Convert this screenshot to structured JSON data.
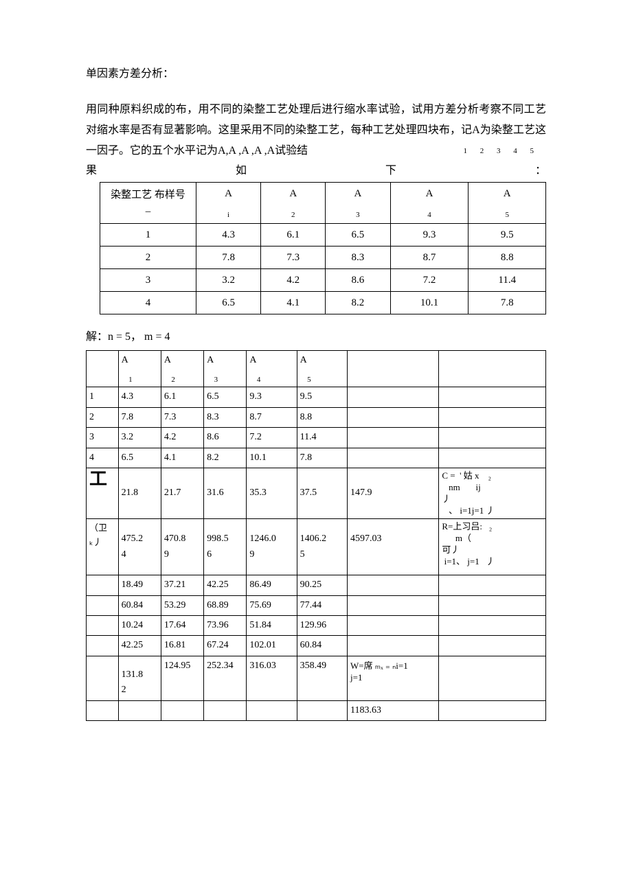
{
  "title": "单因素方差分析：",
  "paragraph": "用同种原料织成的布，用不同的染整工艺处理后进行缩水率试验，试用方差分析考察不同工艺对缩水率是否有显著影响。这里采用不同的染整工艺，每种工艺处理四块布，记A为染整工艺这一因子。它的五个水平记为A,A ,A ,A ,A试验结",
  "subnums": "1  2  3  4  5",
  "resultLine": {
    "left": "果",
    "mid": "如",
    "right1": "下",
    "right2": "："
  },
  "table1": {
    "header": {
      "label": "染整工艺 布样号\n–",
      "cols": [
        "A",
        "A",
        "A",
        "A",
        "A"
      ],
      "subs": [
        "i",
        "2",
        "3",
        "4",
        "5"
      ]
    },
    "rows": [
      {
        "label": "1",
        "vals": [
          "4.3",
          "6.1",
          "6.5",
          "9.3",
          "9.5"
        ]
      },
      {
        "label": "2",
        "vals": [
          "7.8",
          "7.3",
          "8.3",
          "8.7",
          "8.8"
        ]
      },
      {
        "label": "3",
        "vals": [
          "3.2",
          "4.2",
          "8.6",
          "7.2",
          "11.4"
        ]
      },
      {
        "label": "4",
        "vals": [
          "6.5",
          "4.1",
          "8.2",
          "10.1",
          "7.8"
        ]
      }
    ]
  },
  "solution": "解：n = 5，  m = 4",
  "table2": {
    "header": {
      "cols": [
        "A",
        "A",
        "A",
        "A",
        "A"
      ],
      "subs": [
        "1",
        "2",
        "3",
        "4",
        "5"
      ]
    },
    "dataRows": [
      {
        "label": "1",
        "vals": [
          "4.3",
          "6.1",
          "6.5",
          "9.3",
          "9.5"
        ]
      },
      {
        "label": "2",
        "vals": [
          "7.8",
          "7.3",
          "8.3",
          "8.7",
          "8.8"
        ]
      },
      {
        "label": "3",
        "vals": [
          "3.2",
          "4.2",
          "8.6",
          "7.2",
          "11.4"
        ]
      },
      {
        "label": "4",
        "vals": [
          "6.5",
          "4.1",
          "8.2",
          "10.1",
          "7.8"
        ]
      }
    ],
    "sumRow": {
      "label": "工",
      "vals": [
        "21.8",
        "21.7",
        "31.6",
        "35.3",
        "37.5"
      ],
      "total": "147.9",
      "formula": {
        "l1": "C =  ' 姑 x    ₂",
        "l2": "nm       ij",
        "l3": "丿",
        "l4": "、 i=1j=1 丿"
      }
    },
    "sqRow": {
      "label": "（卫\nₖ丿",
      "vals": [
        "475.2\n4",
        "470.8\n9",
        "998.5\n6",
        "1246.0\n9",
        "1406.2\n5"
      ],
      "total": "4597.03",
      "formula": {
        "l1": "R=上习吕:   ₂",
        "l2": "m（",
        "l3": "可丿",
        "l4": "i=1、 j=1   丿"
      }
    },
    "sqDataRows": [
      {
        "vals": [
          "18.49",
          "37.21",
          "42.25",
          "86.49",
          "90.25"
        ]
      },
      {
        "vals": [
          "60.84",
          "53.29",
          "68.89",
          "75.69",
          "77.44"
        ]
      },
      {
        "vals": [
          "10.24",
          "17.64",
          "73.96",
          "51.84",
          "129.96"
        ]
      },
      {
        "vals": [
          "42.25",
          "16.81",
          "67.24",
          "102.01",
          "60.84"
        ]
      }
    ],
    "sqSumRow": {
      "vals": [
        "131.8\n2",
        "124.95",
        "252.34",
        "316.03",
        "358.49"
      ],
      "formula": "W=席 ₘₓ ₌ ₙi=1\n j=1"
    },
    "finalRow": {
      "total": "1183.63"
    }
  }
}
